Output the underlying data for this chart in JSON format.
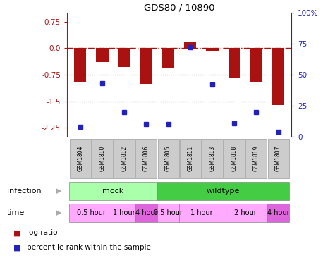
{
  "title": "GDS80 / 10890",
  "samples": [
    "GSM1804",
    "GSM1810",
    "GSM1812",
    "GSM1806",
    "GSM1805",
    "GSM1811",
    "GSM1813",
    "GSM1818",
    "GSM1819",
    "GSM1807"
  ],
  "log_ratio": [
    -0.95,
    -0.38,
    -0.52,
    -1.0,
    -0.55,
    0.18,
    -0.08,
    -0.82,
    -0.95,
    -1.6
  ],
  "percentile": [
    8,
    43,
    20,
    10,
    10,
    72,
    42,
    11,
    20,
    4
  ],
  "ylim_left": [
    -2.5,
    1.0
  ],
  "ylim_right": [
    0,
    100
  ],
  "yticks_left": [
    -2.25,
    -1.5,
    -0.75,
    0.0,
    0.75
  ],
  "yticks_right": [
    0,
    25,
    50,
    75,
    100
  ],
  "bar_color": "#aa1111",
  "dot_color": "#2222bb",
  "hline_y": 0,
  "dotted_lines": [
    -0.75,
    -1.5
  ],
  "infection_groups": [
    {
      "label": "mock",
      "start": 0,
      "end": 4,
      "color": "#aaffaa"
    },
    {
      "label": "wildtype",
      "start": 4,
      "end": 10,
      "color": "#44cc44"
    }
  ],
  "time_groups": [
    {
      "label": "0.5 hour",
      "start": 0,
      "end": 2,
      "color": "#ffaaff"
    },
    {
      "label": "1 hour",
      "start": 2,
      "end": 3,
      "color": "#ffaaff"
    },
    {
      "label": "4 hour",
      "start": 3,
      "end": 4,
      "color": "#dd66dd"
    },
    {
      "label": "0.5 hour",
      "start": 4,
      "end": 5,
      "color": "#ffaaff"
    },
    {
      "label": "1 hour",
      "start": 5,
      "end": 7,
      "color": "#ffaaff"
    },
    {
      "label": "2 hour",
      "start": 7,
      "end": 9,
      "color": "#ffaaff"
    },
    {
      "label": "4 hour",
      "start": 9,
      "end": 10,
      "color": "#dd66dd"
    }
  ],
  "legend_log_ratio": "log ratio",
  "legend_percentile": "percentile rank within the sample",
  "label_infection": "infection",
  "label_time": "time",
  "figw": 4.75,
  "figh": 3.66
}
